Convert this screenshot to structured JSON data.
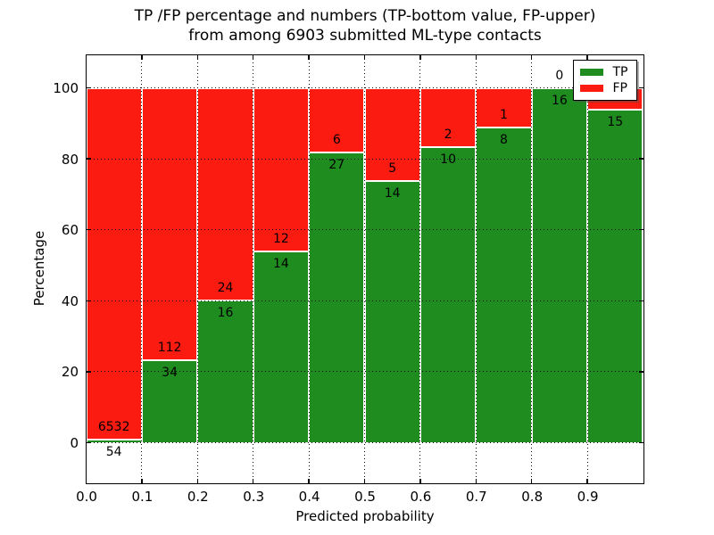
{
  "title": {
    "line1": "TP /FP percentage and numbers (TP-bottom value, FP-upper)",
    "line2": "from among 6903 submitted ML-type contacts"
  },
  "axes": {
    "xlabel": "Predicted probability",
    "ylabel": "Percentage"
  },
  "chart_data": {
    "type": "bar",
    "stacked": true,
    "normalized": "each bin scaled so TP+FP = 100%",
    "title": "TP /FP percentage and numbers (TP-bottom value, FP-upper) from among 6903 submitted ML-type contacts",
    "xlabel": "Predicted probability",
    "ylabel": "Percentage",
    "total_contacts": 6903,
    "bins": [
      "0.0-0.1",
      "0.1-0.2",
      "0.2-0.3",
      "0.3-0.4",
      "0.4-0.5",
      "0.5-0.6",
      "0.6-0.7",
      "0.7-0.8",
      "0.8-0.9",
      "0.9-1.0"
    ],
    "bin_width": 0.1,
    "series": [
      {
        "name": "TP",
        "color": "#1f8c1f",
        "values": [
          54,
          34,
          16,
          14,
          27,
          14,
          10,
          8,
          16,
          15
        ]
      },
      {
        "name": "FP",
        "color": "#fb1b10",
        "values": [
          6532,
          112,
          24,
          12,
          6,
          5,
          2,
          1,
          0,
          1
        ]
      }
    ],
    "tp_percent": [
      0.82,
      23.29,
      40.0,
      53.85,
      81.82,
      73.68,
      83.33,
      88.89,
      100.0,
      93.75
    ],
    "xticks": [
      "0.0",
      "0.1",
      "0.2",
      "0.3",
      "0.4",
      "0.5",
      "0.6",
      "0.7",
      "0.8",
      "0.9"
    ],
    "yticks": [
      "0",
      "20",
      "40",
      "60",
      "80",
      "100"
    ],
    "xlim": [
      0.0,
      1.0
    ],
    "ylim": [
      -11.3,
      109.3
    ],
    "grid": "dotted black, both axes, drawn over bars",
    "bar_edge_color": "#ffffff",
    "legend_position": "upper right",
    "legend": {
      "items": [
        {
          "label": "TP",
          "color": "#1f8c1f"
        },
        {
          "label": "FP",
          "color": "#fb1b10"
        }
      ]
    }
  }
}
